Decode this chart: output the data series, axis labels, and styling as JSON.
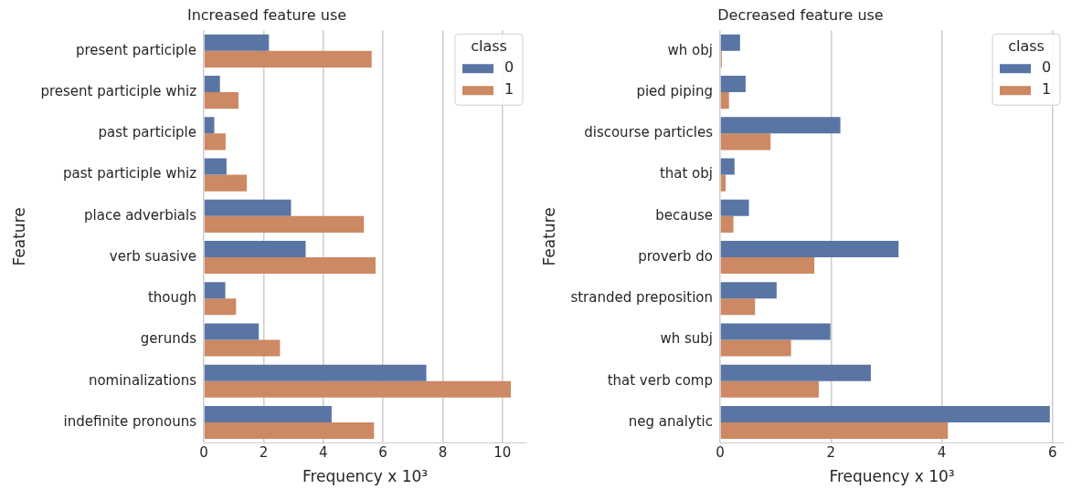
{
  "chart_data": [
    {
      "type": "bar",
      "orientation": "horizontal",
      "title": "Increased feature use",
      "xlabel": "Frequency x 10³",
      "ylabel": "Feature",
      "legend_title": "class",
      "legend": "top right",
      "grid": "x",
      "categories": [
        "present participle",
        "present participle whiz",
        "past participle",
        "past participle whiz",
        "place adverbials",
        "verb suasive",
        "though",
        "gerunds",
        "nominalizations",
        "indefinite pronouns"
      ],
      "series": [
        {
          "name": "0",
          "color": "#5975a4",
          "values": [
            2.18,
            0.54,
            0.35,
            0.76,
            2.92,
            3.41,
            0.72,
            1.84,
            7.45,
            4.28
          ]
        },
        {
          "name": "1",
          "color": "#cc8963",
          "values": [
            5.62,
            1.16,
            0.73,
            1.44,
            5.36,
            5.75,
            1.08,
            2.55,
            10.28,
            5.7
          ]
        }
      ],
      "xlim": [
        0,
        10.8
      ],
      "xticks": [
        0,
        2,
        4,
        6,
        8,
        10
      ]
    },
    {
      "type": "bar",
      "orientation": "horizontal",
      "title": "Decreased feature use",
      "xlabel": "Frequency x 10³",
      "ylabel": "Feature",
      "legend_title": "class",
      "legend": "top right",
      "grid": "x",
      "categories": [
        "wh obj",
        "pied piping",
        "discourse particles",
        "that obj",
        "because",
        "proverb do",
        "stranded preposition",
        "wh subj",
        "that verb comp",
        "neg analytic"
      ],
      "series": [
        {
          "name": "0",
          "color": "#5975a4",
          "values": [
            0.36,
            0.46,
            2.17,
            0.26,
            0.52,
            3.22,
            1.02,
            1.99,
            2.72,
            5.95
          ]
        },
        {
          "name": "1",
          "color": "#cc8963",
          "values": [
            0.03,
            0.16,
            0.91,
            0.1,
            0.24,
            1.7,
            0.63,
            1.28,
            1.78,
            4.11
          ]
        }
      ],
      "xlim": [
        0,
        6.2
      ],
      "xticks": [
        0,
        2,
        4,
        6
      ]
    }
  ]
}
